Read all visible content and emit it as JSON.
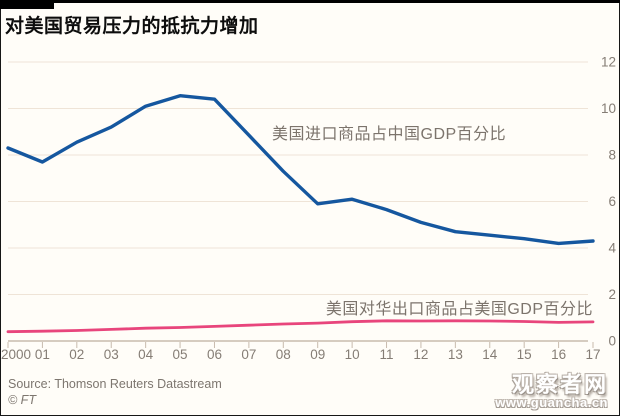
{
  "header": {
    "title": "对美国贸易压力的抵抗力增加"
  },
  "chart_data": {
    "type": "line",
    "x_tick_labels": [
      "2000",
      "01",
      "02",
      "03",
      "04",
      "05",
      "06",
      "07",
      "08",
      "09",
      "10",
      "11",
      "12",
      "13",
      "14",
      "15",
      "16",
      "17"
    ],
    "series": [
      {
        "name": "美国进口商品占中国GDP百分比",
        "color": "#15579f",
        "values": [
          8.3,
          7.7,
          8.55,
          9.2,
          10.1,
          10.55,
          10.4,
          8.85,
          7.3,
          5.9,
          6.1,
          5.65,
          5.1,
          4.7,
          4.55,
          4.4,
          4.2,
          4.3
        ]
      },
      {
        "name": "美国对华出口商品占美国GDP百分比",
        "color": "#e8457c",
        "values": [
          0.4,
          0.42,
          0.45,
          0.5,
          0.55,
          0.58,
          0.63,
          0.68,
          0.73,
          0.77,
          0.83,
          0.87,
          0.86,
          0.87,
          0.86,
          0.84,
          0.8,
          0.82
        ]
      }
    ],
    "ylim": [
      0,
      12
    ],
    "yticks": [
      0,
      2,
      4,
      6,
      8,
      10,
      12
    ],
    "y_axis_side": "right",
    "grid": true,
    "legend_position": "inline-annotations",
    "gridline_color": "#efe4d7",
    "axis_color": "#c8bbad"
  },
  "footer": {
    "source": "Source: Thomson Reuters Datastream",
    "copyright": "© FT"
  },
  "watermark": {
    "name": "观察者网",
    "url": "www.guancha.cn"
  }
}
